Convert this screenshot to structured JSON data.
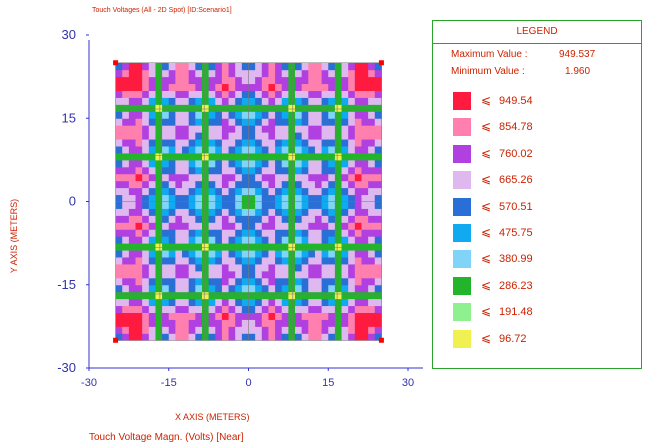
{
  "chart_data": {
    "type": "heatmap",
    "title": "Touch Voltages (All - 2D Spot) [ID:Scenario1]",
    "xlabel": "X AXIS  (METERS)",
    "ylabel": "Y AXIS  (METERS)",
    "footer": "Touch Voltage Magn. (Volts) [Near]",
    "xlim": [
      -30,
      30
    ],
    "ylim": [
      -30,
      30
    ],
    "x_ticks": [
      "-30",
      "-15",
      "0",
      "15",
      "30"
    ],
    "y_ticks": [
      "30",
      "15",
      "0",
      "-15",
      "-30"
    ],
    "grid_extent": [
      -25,
      25
    ],
    "grid_lines": 7,
    "legend": {
      "title": "LEGEND",
      "max_label": "Maximum Value :",
      "max_value": "949.537",
      "min_label": "Minimum Value :",
      "min_value": "1.960",
      "symbol": "⩽",
      "levels": [
        {
          "value": "949.54",
          "color": "#ff1a40"
        },
        {
          "value": "854.78",
          "color": "#ff7fae"
        },
        {
          "value": "760.02",
          "color": "#b040e0"
        },
        {
          "value": "665.26",
          "color": "#e0b8f0"
        },
        {
          "value": "570.51",
          "color": "#2a6fd6"
        },
        {
          "value": "475.75",
          "color": "#10aaf0"
        },
        {
          "value": "380.99",
          "color": "#80d4f8"
        },
        {
          "value": "286.23",
          "color": "#22b42a"
        },
        {
          "value": "191.48",
          "color": "#8ef08e"
        },
        {
          "value": "96.72",
          "color": "#f0f050"
        }
      ]
    }
  }
}
